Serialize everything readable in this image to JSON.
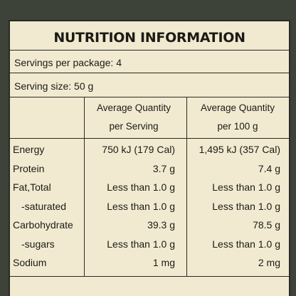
{
  "label": {
    "title": "NUTRITION INFORMATION",
    "servings_per_package": "Servings per package: 4",
    "serving_size": "Serving size: 50 g",
    "headers": [
      [
        "Average Quantity",
        "per Serving"
      ],
      [
        "Average Quantity",
        "per 100 g"
      ]
    ],
    "rows": [
      [
        "Energy",
        "750 kJ (179 Cal)",
        "1,495 kJ (357 Cal)"
      ],
      [
        "Protein",
        "3.7 g",
        "7.4 g"
      ],
      [
        "Fat,Total",
        "Less than 1.0 g",
        "Less than 1.0 g"
      ],
      [
        "-saturated",
        "Less than 1.0 g",
        "Less than 1.0 g"
      ],
      [
        "Carbohydrate",
        "39.3 g",
        "78.5 g"
      ],
      [
        "-sugars",
        "Less than 1.0 g",
        "Less than 1.0 g"
      ],
      [
        "Sodium",
        "1 mg",
        "2 mg"
      ]
    ]
  }
}
